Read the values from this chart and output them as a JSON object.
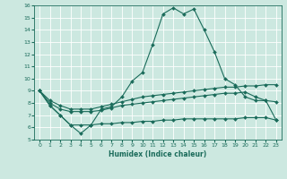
{
  "xlabel": "Humidex (Indice chaleur)",
  "bg_color": "#cce8e0",
  "grid_color": "#ffffff",
  "line_color": "#1a6b5a",
  "x": [
    0,
    1,
    2,
    3,
    4,
    5,
    6,
    7,
    8,
    9,
    10,
    11,
    12,
    13,
    14,
    15,
    16,
    17,
    18,
    19,
    20,
    21,
    22,
    23
  ],
  "line1": [
    9.0,
    7.8,
    7.0,
    6.2,
    5.5,
    6.2,
    7.5,
    7.7,
    8.5,
    9.8,
    10.5,
    12.8,
    15.3,
    15.8,
    15.3,
    15.7,
    14.0,
    12.2,
    10.0,
    9.5,
    8.5,
    8.2,
    8.2,
    6.6
  ],
  "line2": [
    9.0,
    8.2,
    7.8,
    7.5,
    7.5,
    7.5,
    7.7,
    7.9,
    8.1,
    8.3,
    8.5,
    8.6,
    8.7,
    8.8,
    8.9,
    9.0,
    9.1,
    9.2,
    9.3,
    9.3,
    9.4,
    9.4,
    9.5,
    9.5
  ],
  "line3": [
    9.0,
    8.0,
    7.5,
    7.3,
    7.3,
    7.3,
    7.4,
    7.6,
    7.8,
    7.9,
    8.0,
    8.1,
    8.2,
    8.3,
    8.4,
    8.5,
    8.6,
    8.7,
    8.8,
    8.8,
    8.9,
    8.5,
    8.2,
    8.1
  ],
  "line4": [
    9.0,
    7.8,
    7.0,
    6.2,
    6.2,
    6.2,
    6.3,
    6.3,
    6.4,
    6.4,
    6.5,
    6.5,
    6.6,
    6.6,
    6.7,
    6.7,
    6.7,
    6.7,
    6.7,
    6.7,
    6.8,
    6.8,
    6.8,
    6.6
  ],
  "ylim": [
    5,
    16
  ],
  "xlim": [
    -0.5,
    23.5
  ],
  "yticks": [
    5,
    6,
    7,
    8,
    9,
    10,
    11,
    12,
    13,
    14,
    15,
    16
  ],
  "xticks": [
    0,
    1,
    2,
    3,
    4,
    5,
    6,
    7,
    8,
    9,
    10,
    11,
    12,
    13,
    14,
    15,
    16,
    17,
    18,
    19,
    20,
    21,
    22,
    23
  ]
}
